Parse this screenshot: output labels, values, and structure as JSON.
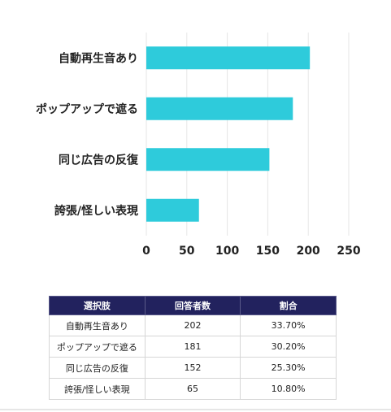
{
  "chart_data": {
    "type": "bar",
    "orientation": "horizontal",
    "categories": [
      "自動再生音あり",
      "ポップアップで遮る",
      "同じ広告の反復",
      "誇張/怪しい表現"
    ],
    "values": [
      202,
      181,
      152,
      65
    ],
    "xlim": [
      0,
      250
    ],
    "xticks": [
      0,
      50,
      100,
      150,
      200,
      250
    ],
    "grid": true,
    "bar_color": "#2ecbdb",
    "grid_color": "#e6e6e6"
  },
  "table": {
    "headers": [
      "選択肢",
      "回答者数",
      "割合"
    ],
    "rows": [
      [
        "自動再生音あり",
        "202",
        "33.70%"
      ],
      [
        "ポップアップで遮る",
        "181",
        "30.20%"
      ],
      [
        "同じ広告の反復",
        "152",
        "25.30%"
      ],
      [
        "誇張/怪しい表現",
        "65",
        "10.80%"
      ]
    ]
  }
}
